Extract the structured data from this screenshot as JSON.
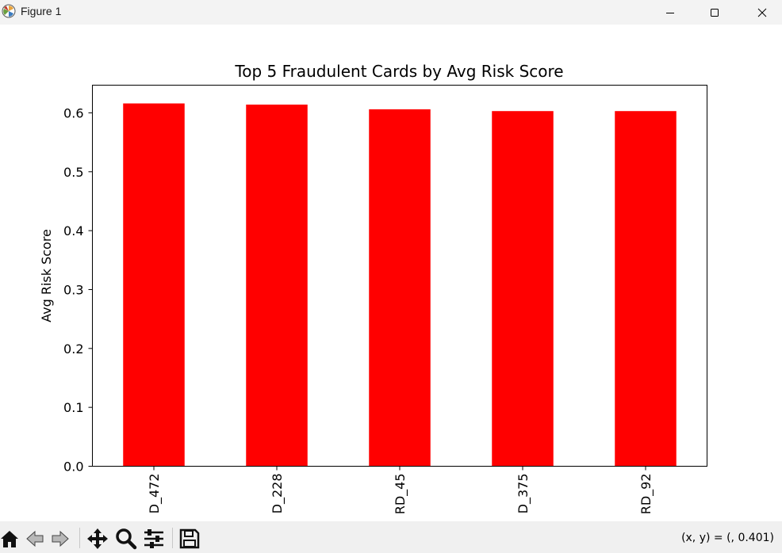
{
  "window": {
    "title": "Figure 1",
    "icons": [
      "matplotlib-logo-icon",
      "minimize-icon",
      "maximize-icon",
      "close-icon"
    ]
  },
  "toolbar": {
    "buttons": [
      "home-icon",
      "back-icon",
      "forward-icon",
      "pan-icon",
      "zoom-icon",
      "configure-subplots-icon",
      "save-icon"
    ],
    "coords_text": "(x, y) = (, 0.401)"
  },
  "chart_data": {
    "type": "bar",
    "title": "Top 5 Fraudulent Cards by Avg Risk Score",
    "xlabel": "",
    "ylabel": "Avg Risk Score",
    "categories": [
      "D_472",
      "D_228",
      "RD_45",
      "D_375",
      "RD_92"
    ],
    "values": [
      0.616,
      0.614,
      0.606,
      0.603,
      0.603
    ],
    "ylim": [
      0,
      0.647
    ],
    "yticks": [
      0.0,
      0.1,
      0.2,
      0.3,
      0.4,
      0.5,
      0.6
    ],
    "ytick_labels": [
      "0.0",
      "0.1",
      "0.2",
      "0.3",
      "0.4",
      "0.5",
      "0.6"
    ],
    "bar_color": "#ff0000",
    "grid": false,
    "legend": "none"
  }
}
